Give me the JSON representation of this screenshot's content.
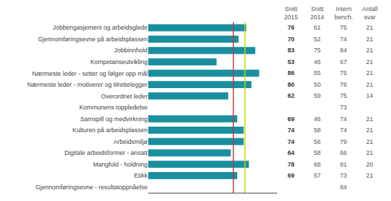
{
  "chart_data": {
    "type": "bar",
    "orientation": "horizontal",
    "categories": [
      "Jobbengasjement og arbeidsglede",
      "Gjennomføringsevne på arbeidsplassen",
      "Jobbinnhold",
      "Kompetanseutvikling",
      "Nærmeste leder - setter og følger opp mål",
      "Nærmeste leder - motiverer og tilrettelegger",
      "Overordnet leder",
      "Kommunens toppledelse",
      "Samspill og medvirkning",
      "Kulturen på arbeidsplassen",
      "Arbeidsmiljø",
      "Digitale arbeidsformer - ansatt",
      "Mangfold - holdning",
      "Etikk",
      "Gjennomføringsevne - resultatoppnåelse"
    ],
    "series": [
      {
        "name": "Snitt\n2015",
        "color": "#1a8fa0",
        "values": [
          76,
          70,
          83,
          53,
          86,
          80,
          62,
          null,
          69,
          74,
          74,
          64,
          78,
          69,
          null
        ]
      },
      {
        "name": "Snitt\n2014",
        "type": "table",
        "values": [
          61,
          52,
          75,
          46,
          55,
          50,
          59,
          null,
          46,
          58,
          56,
          58,
          68,
          57,
          null
        ]
      },
      {
        "name": "Intern\nbench.",
        "type": "table",
        "values": [
          75,
          74,
          84,
          67,
          75,
          76,
          75,
          73,
          74,
          74,
          79,
          66,
          81,
          73,
          84
        ]
      },
      {
        "name": "Antall\nsvar",
        "type": "table",
        "values": [
          21,
          21,
          21,
          21,
          21,
          21,
          14,
          null,
          21,
          21,
          21,
          21,
          20,
          21,
          null
        ]
      }
    ],
    "lines": [
      {
        "value": 66,
        "color": "#c0392b"
      },
      {
        "value": 75,
        "color": "#c8d400"
      }
    ],
    "xlim": [
      0,
      100
    ],
    "xticks": [],
    "tick_labels": "y",
    "grid": false
  }
}
